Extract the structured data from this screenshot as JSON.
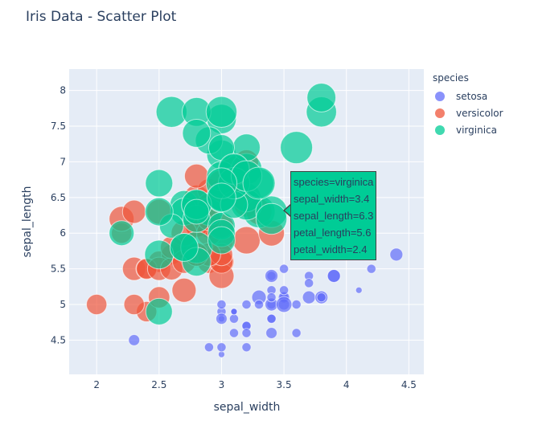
{
  "title": "Iris Data - Scatter Plot",
  "legend": {
    "title": "species",
    "items": [
      {
        "label": "setosa",
        "color": "#636efa"
      },
      {
        "label": "versicolor",
        "color": "#ef553b"
      },
      {
        "label": "virginica",
        "color": "#00cc96"
      }
    ]
  },
  "tooltip": {
    "lines": [
      "species=virginica",
      "sepal_width=3.4",
      "sepal_length=6.3",
      "petal_length=5.6",
      "petal_width=2.4"
    ]
  },
  "chart_data": {
    "type": "scatter",
    "title": "Iris Data - Scatter Plot",
    "xlabel": "sepal_width",
    "ylabel": "sepal_length",
    "size_field": "petal_width",
    "xlim": [
      1.78,
      4.62
    ],
    "ylim": [
      4.02,
      8.3
    ],
    "xticks": [
      2,
      2.5,
      3,
      3.5,
      4,
      4.5
    ],
    "yticks": [
      4.5,
      5,
      5.5,
      6,
      6.5,
      7,
      7.5,
      8
    ],
    "grid": true,
    "legend_position": "right",
    "background": "#e5ecf6",
    "series": [
      {
        "name": "setosa",
        "color": "#636efa",
        "x": [
          3.5,
          3.0,
          3.2,
          3.1,
          3.6,
          3.9,
          3.4,
          3.4,
          2.9,
          3.1,
          3.7,
          3.4,
          3.0,
          3.0,
          4.0,
          4.4,
          3.9,
          3.5,
          3.8,
          3.8,
          3.4,
          3.7,
          3.6,
          3.3,
          3.4,
          3.0,
          3.4,
          3.5,
          3.4,
          3.2,
          3.1,
          3.4,
          4.1,
          4.2,
          3.1,
          3.2,
          3.5,
          3.1,
          3.0,
          3.4,
          3.5,
          2.3,
          3.2,
          3.5,
          3.8,
          3.0,
          3.8,
          3.2,
          3.7,
          3.3
        ],
        "y": [
          5.1,
          4.9,
          4.7,
          4.6,
          5.0,
          5.4,
          4.6,
          5.0,
          4.4,
          4.9,
          5.4,
          4.8,
          4.8,
          4.3,
          5.8,
          5.7,
          5.4,
          5.1,
          5.7,
          5.1,
          5.4,
          5.1,
          4.6,
          5.1,
          4.8,
          5.0,
          5.0,
          5.2,
          5.2,
          4.7,
          4.8,
          5.4,
          5.2,
          5.5,
          4.9,
          5.0,
          5.5,
          4.9,
          4.4,
          5.1,
          5.0,
          4.5,
          4.4,
          5.0,
          5.1,
          4.8,
          5.1,
          4.6,
          5.3,
          5.0
        ],
        "size": [
          0.2,
          0.2,
          0.2,
          0.2,
          0.2,
          0.4,
          0.3,
          0.2,
          0.2,
          0.1,
          0.2,
          0.2,
          0.1,
          0.1,
          0.2,
          0.4,
          0.4,
          0.3,
          0.3,
          0.3,
          0.2,
          0.4,
          0.2,
          0.5,
          0.2,
          0.2,
          0.4,
          0.2,
          0.2,
          0.2,
          0.2,
          0.4,
          0.1,
          0.2,
          0.1,
          0.2,
          0.2,
          0.1,
          0.2,
          0.2,
          0.3,
          0.3,
          0.2,
          0.6,
          0.4,
          0.3,
          0.2,
          0.2,
          0.2,
          0.2
        ]
      },
      {
        "name": "versicolor",
        "color": "#ef553b",
        "x": [
          3.2,
          3.2,
          3.1,
          2.3,
          2.8,
          2.8,
          3.3,
          2.4,
          2.9,
          2.7,
          2.0,
          3.0,
          2.2,
          2.9,
          2.9,
          3.1,
          3.0,
          2.7,
          2.2,
          2.5,
          3.2,
          2.8,
          2.5,
          2.8,
          2.9,
          3.0,
          2.8,
          3.0,
          2.9,
          2.6,
          2.4,
          2.4,
          2.7,
          2.7,
          3.0,
          3.4,
          3.1,
          2.3,
          3.0,
          2.5,
          2.6,
          3.0,
          2.6,
          2.3,
          2.7,
          3.0,
          2.9,
          2.9,
          2.5,
          2.8
        ],
        "y": [
          7.0,
          6.4,
          6.9,
          5.5,
          6.5,
          5.7,
          6.3,
          4.9,
          6.6,
          5.2,
          5.0,
          5.9,
          6.0,
          6.1,
          5.6,
          6.7,
          5.6,
          5.8,
          6.2,
          5.6,
          5.9,
          6.1,
          6.3,
          6.1,
          6.4,
          6.6,
          6.8,
          6.7,
          6.0,
          5.7,
          5.5,
          5.5,
          5.8,
          6.0,
          5.4,
          6.0,
          6.7,
          6.3,
          5.6,
          5.5,
          5.5,
          6.1,
          5.8,
          5.0,
          5.6,
          5.7,
          5.7,
          6.2,
          5.1,
          5.7
        ],
        "size": [
          1.4,
          1.5,
          1.5,
          1.3,
          1.5,
          1.3,
          1.6,
          1.0,
          1.3,
          1.4,
          1.0,
          1.5,
          1.0,
          1.4,
          1.3,
          1.4,
          1.5,
          1.0,
          1.5,
          1.1,
          1.8,
          1.3,
          1.5,
          1.2,
          1.3,
          1.4,
          1.4,
          1.7,
          1.5,
          1.0,
          1.1,
          1.0,
          1.2,
          1.6,
          1.5,
          1.6,
          1.5,
          1.3,
          1.3,
          1.3,
          1.2,
          1.4,
          1.2,
          1.0,
          1.3,
          1.2,
          1.3,
          1.3,
          1.1,
          1.3
        ]
      },
      {
        "name": "virginica",
        "color": "#00cc96",
        "x": [
          3.3,
          2.7,
          3.0,
          2.9,
          3.0,
          3.0,
          2.5,
          2.9,
          2.5,
          3.6,
          3.2,
          2.7,
          3.0,
          2.5,
          2.8,
          3.2,
          3.0,
          3.8,
          2.6,
          2.2,
          3.2,
          2.8,
          2.8,
          2.7,
          3.3,
          3.2,
          2.8,
          3.0,
          2.8,
          3.0,
          2.8,
          3.8,
          2.8,
          2.8,
          2.6,
          3.0,
          3.4,
          3.1,
          3.0,
          3.1,
          3.1,
          3.1,
          2.7,
          3.2,
          3.3,
          3.0,
          2.5,
          3.0,
          3.4,
          3.0
        ],
        "y": [
          6.3,
          5.8,
          7.1,
          6.3,
          6.5,
          7.6,
          4.9,
          7.3,
          6.7,
          7.2,
          6.5,
          6.4,
          6.8,
          5.7,
          5.8,
          6.4,
          6.5,
          7.7,
          7.7,
          6.0,
          6.9,
          5.6,
          7.7,
          6.3,
          6.7,
          7.2,
          6.2,
          6.1,
          6.4,
          7.2,
          7.4,
          7.9,
          6.4,
          6.3,
          6.1,
          7.7,
          6.3,
          6.4,
          6.0,
          6.9,
          6.7,
          6.9,
          5.8,
          6.8,
          6.7,
          6.7,
          6.3,
          6.5,
          6.2,
          5.9
        ],
        "size": [
          2.5,
          1.9,
          2.1,
          1.8,
          2.2,
          2.1,
          1.7,
          1.8,
          1.8,
          2.5,
          2.0,
          1.9,
          2.1,
          2.0,
          2.4,
          2.3,
          1.8,
          2.2,
          2.3,
          1.5,
          2.3,
          2.0,
          2.0,
          1.8,
          2.1,
          1.8,
          1.8,
          1.8,
          2.1,
          1.6,
          1.9,
          2.0,
          2.2,
          1.5,
          1.4,
          2.3,
          2.4,
          1.8,
          1.8,
          2.1,
          2.4,
          2.3,
          1.9,
          2.3,
          2.5,
          2.3,
          1.9,
          2.0,
          2.3,
          1.8
        ]
      }
    ],
    "hover_point": {
      "species": "virginica",
      "sepal_width": 3.4,
      "sepal_length": 6.3,
      "petal_length": 5.6,
      "petal_width": 2.4
    }
  }
}
